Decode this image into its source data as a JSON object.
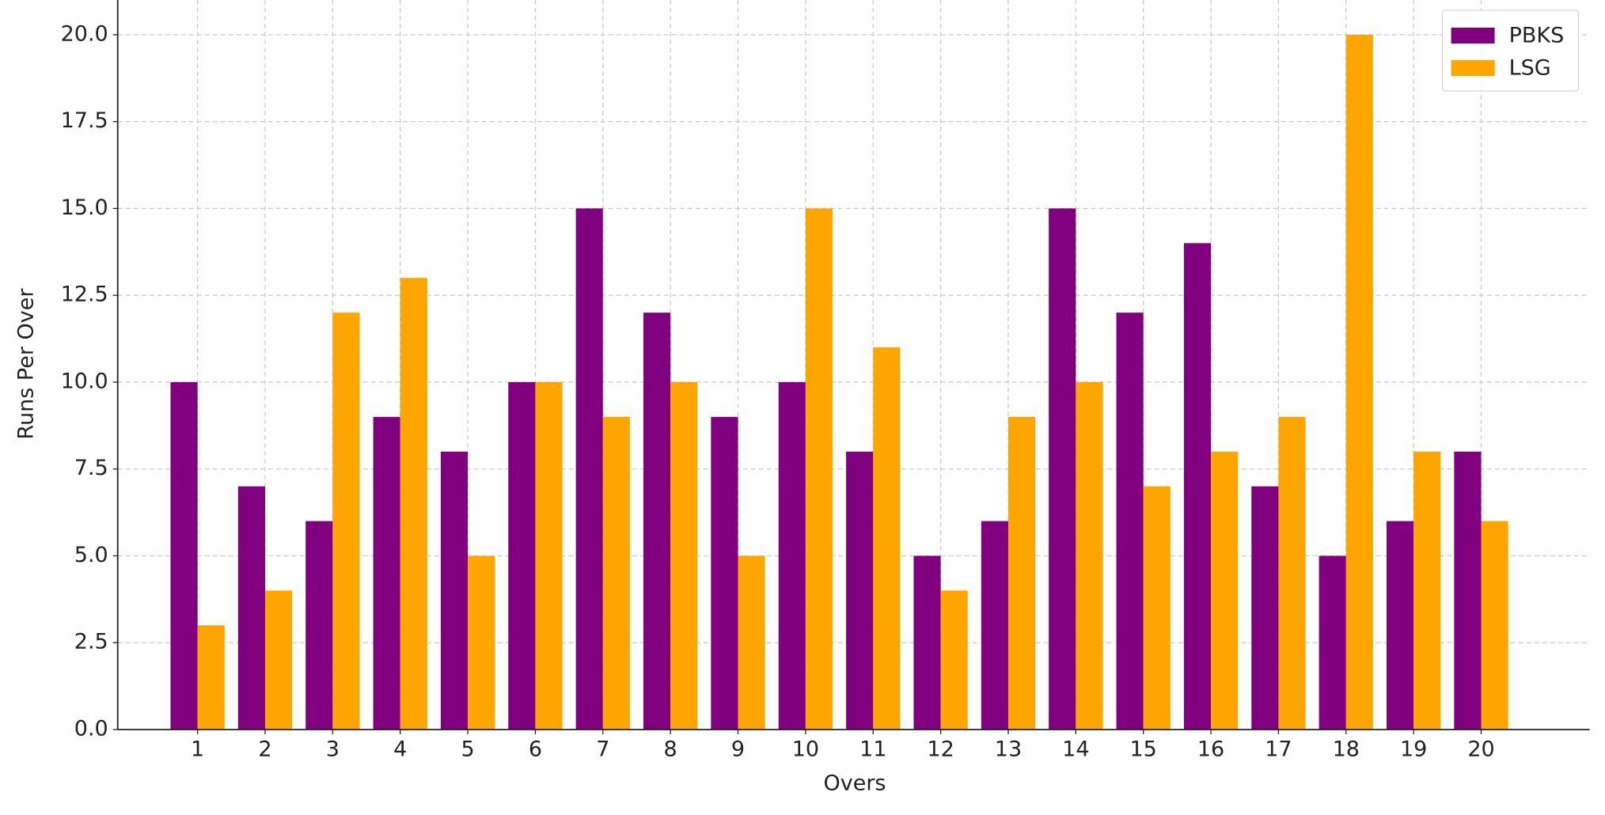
{
  "chart_data": {
    "type": "bar",
    "x_label": "Overs",
    "y_label": "Runs Per Over",
    "categories": [
      "1",
      "2",
      "3",
      "4",
      "5",
      "6",
      "7",
      "8",
      "9",
      "10",
      "11",
      "12",
      "13",
      "14",
      "15",
      "16",
      "17",
      "18",
      "19",
      "20"
    ],
    "series": [
      {
        "name": "PBKS",
        "color": "#800080",
        "values": [
          10,
          7,
          6,
          9,
          8,
          10,
          15,
          12,
          9,
          10,
          8,
          5,
          6,
          15,
          12,
          14,
          7,
          5,
          6,
          8
        ]
      },
      {
        "name": "LSG",
        "color": "#ffa500",
        "values": [
          3,
          4,
          12,
          13,
          5,
          10,
          9,
          10,
          5,
          15,
          11,
          4,
          9,
          10,
          7,
          8,
          9,
          20,
          8,
          6
        ]
      }
    ],
    "ylim": [
      0,
      21
    ],
    "yticks": [
      {
        "value": 0,
        "label": "0.0"
      },
      {
        "value": 2.5,
        "label": "2.5"
      },
      {
        "value": 5,
        "label": "5.0"
      },
      {
        "value": 7.5,
        "label": "7.5"
      },
      {
        "value": 10,
        "label": "10.0"
      },
      {
        "value": 12.5,
        "label": "12.5"
      },
      {
        "value": 15,
        "label": "15.0"
      },
      {
        "value": 17.5,
        "label": "17.5"
      },
      {
        "value": 20,
        "label": "20.0"
      }
    ],
    "grid": true,
    "legend": "upper right"
  }
}
